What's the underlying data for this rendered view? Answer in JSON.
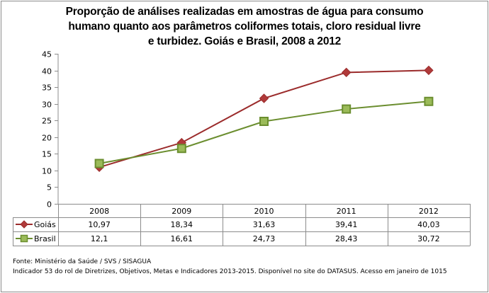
{
  "chart_data": {
    "type": "line",
    "title_lines": [
      "Proporção de análises realizadas em amostras de água para consumo",
      "humano quanto aos parâmetros coliformes totais, cloro residual livre",
      "e turbidez. Goiás e Brasil, 2008 a 2012"
    ],
    "categories": [
      "2008",
      "2009",
      "2010",
      "2011",
      "2012"
    ],
    "ylim": [
      0,
      45
    ],
    "yticks": [
      0,
      5,
      10,
      15,
      20,
      25,
      30,
      35,
      40,
      45
    ],
    "legend": "data-table",
    "grid": false,
    "series": [
      {
        "name": "Goiás",
        "marker": "diamond",
        "color": "#9b2b2b",
        "fill": "#b03a3a",
        "values": [
          10.97,
          18.34,
          31.63,
          39.41,
          40.03
        ],
        "labels": [
          "10,97",
          "18,34",
          "31,63",
          "39,41",
          "40,03"
        ]
      },
      {
        "name": "Brasil",
        "marker": "square",
        "color": "#6b8e2f",
        "fill": "#9bbb59",
        "values": [
          12.1,
          16.61,
          24.73,
          28.43,
          30.72
        ],
        "labels": [
          "12,1",
          "16,61",
          "24,73",
          "28,43",
          "30,72"
        ]
      }
    ]
  },
  "footer": {
    "source": "Fonte: Ministério da Saúde / SVS / SISAGUA",
    "note": "Indicador 53 do rol de Diretrizes, Objetivos, Metas e Indicadores 2013-2015. Disponível no site do DATASUS. Acesso em janeiro de 1015"
  }
}
